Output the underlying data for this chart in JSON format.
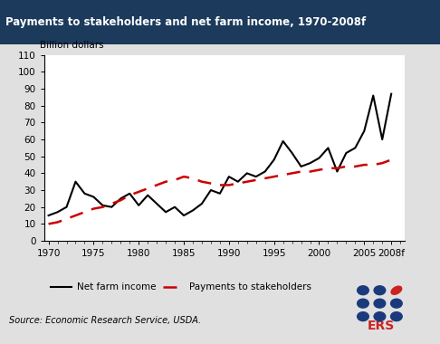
{
  "title": "Payments to stakeholders and net farm income, 1970-2008f",
  "title_bg_color": "#1b3a5c",
  "title_text_color": "#ffffff",
  "ylabel": "Billion dollars",
  "source_text": "Source: Economic Research Service, USDA.",
  "bg_color": "#e0e0e0",
  "plot_bg_color": "#ffffff",
  "ylim": [
    0,
    110
  ],
  "yticks": [
    0,
    10,
    20,
    30,
    40,
    50,
    60,
    70,
    80,
    90,
    100,
    110
  ],
  "xticks": [
    1970,
    1975,
    1980,
    1985,
    1990,
    1995,
    2000,
    2005,
    2008
  ],
  "xlabels": [
    "1970",
    "1975",
    "1980",
    "1985",
    "1990",
    "1995",
    "2000",
    "2005",
    "2008f"
  ],
  "xlim": [
    1969.5,
    2009.5
  ],
  "net_farm_income": {
    "years": [
      1970,
      1971,
      1972,
      1973,
      1974,
      1975,
      1976,
      1977,
      1978,
      1979,
      1980,
      1981,
      1982,
      1983,
      1984,
      1985,
      1986,
      1987,
      1988,
      1989,
      1990,
      1991,
      1992,
      1993,
      1994,
      1995,
      1996,
      1997,
      1998,
      1999,
      2000,
      2001,
      2002,
      2003,
      2004,
      2005,
      2006,
      2007,
      2008
    ],
    "values": [
      15,
      17,
      20,
      35,
      28,
      26,
      21,
      20,
      25,
      28,
      21,
      27,
      22,
      17,
      20,
      15,
      18,
      22,
      30,
      28,
      38,
      35,
      40,
      38,
      41,
      48,
      59,
      52,
      44,
      46,
      49,
      55,
      41,
      52,
      55,
      65,
      86,
      60,
      87
    ],
    "color": "#000000",
    "linewidth": 1.5,
    "linestyle": "-",
    "label": "Net farm income"
  },
  "payments_to_stakeholders": {
    "years": [
      1970,
      1971,
      1972,
      1973,
      1974,
      1975,
      1976,
      1977,
      1978,
      1979,
      1980,
      1981,
      1982,
      1983,
      1984,
      1985,
      1986,
      1987,
      1988,
      1989,
      1990,
      1991,
      1992,
      1993,
      1994,
      1995,
      1996,
      1997,
      1998,
      1999,
      2000,
      2001,
      2002,
      2003,
      2004,
      2005,
      2006,
      2007,
      2008
    ],
    "values": [
      10,
      11,
      13,
      15,
      17,
      19,
      20,
      22,
      24,
      27,
      29,
      31,
      33,
      35,
      36,
      38,
      37,
      35,
      34,
      33,
      33,
      34,
      35,
      36,
      37,
      38,
      39,
      40,
      41,
      41,
      42,
      43,
      43,
      44,
      44,
      45,
      45,
      46,
      48
    ],
    "color": "#cc0000",
    "linewidth": 1.8,
    "linestyle": "--",
    "dashes": [
      6,
      4
    ],
    "label": "Payments to stakeholders"
  },
  "ers_dot_color": "#1a3a7c",
  "ers_leaf_color": "#cc2222",
  "ers_text_color": "#cc2222"
}
